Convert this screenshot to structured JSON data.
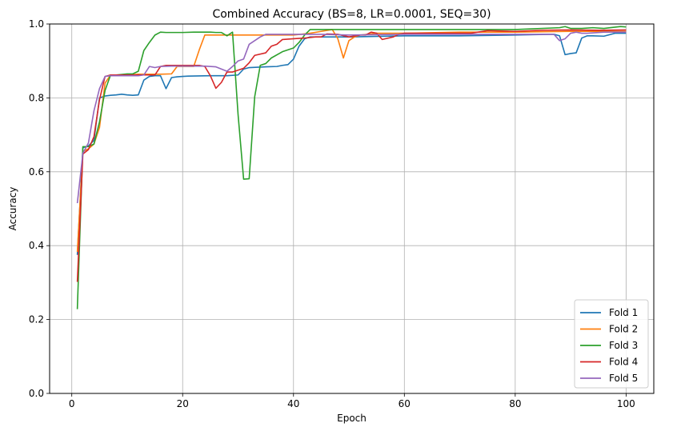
{
  "chart_data": {
    "type": "line",
    "title": "Combined Accuracy (BS=8, LR=0.0001, SEQ=30)",
    "xlabel": "Epoch",
    "ylabel": "Accuracy",
    "xlim": [
      -4,
      105
    ],
    "ylim": [
      0.0,
      1.0
    ],
    "xticks": [
      0,
      20,
      40,
      60,
      80,
      100
    ],
    "yticks": [
      0.0,
      0.2,
      0.4,
      0.6,
      0.8,
      1.0
    ],
    "xtick_labels": [
      "0",
      "20",
      "40",
      "60",
      "80",
      "100"
    ],
    "ytick_labels": [
      "0.0",
      "0.2",
      "0.4",
      "0.6",
      "0.8",
      "1.0"
    ],
    "grid": true,
    "legend_position": "lower-right",
    "series": [
      {
        "name": "Fold 1",
        "color": "#1f77b4",
        "points": [
          [
            1,
            0.375
          ],
          [
            2,
            0.665
          ],
          [
            3,
            0.67
          ],
          [
            4,
            0.685
          ],
          [
            5,
            0.8
          ],
          [
            6,
            0.805
          ],
          [
            7,
            0.807
          ],
          [
            8,
            0.808
          ],
          [
            9,
            0.81
          ],
          [
            10,
            0.808
          ],
          [
            11,
            0.807
          ],
          [
            12,
            0.808
          ],
          [
            13,
            0.848
          ],
          [
            14,
            0.858
          ],
          [
            15,
            0.86
          ],
          [
            16,
            0.86
          ],
          [
            17,
            0.825
          ],
          [
            18,
            0.855
          ],
          [
            19,
            0.857
          ],
          [
            20,
            0.858
          ],
          [
            21,
            0.859
          ],
          [
            25,
            0.86
          ],
          [
            28,
            0.86
          ],
          [
            30,
            0.862
          ],
          [
            31,
            0.878
          ],
          [
            32,
            0.882
          ],
          [
            35,
            0.884
          ],
          [
            37,
            0.885
          ],
          [
            38,
            0.888
          ],
          [
            39,
            0.89
          ],
          [
            40,
            0.905
          ],
          [
            41,
            0.94
          ],
          [
            42,
            0.96
          ],
          [
            43,
            0.965
          ],
          [
            50,
            0.965
          ],
          [
            60,
            0.968
          ],
          [
            70,
            0.968
          ],
          [
            80,
            0.97
          ],
          [
            86,
            0.972
          ],
          [
            87,
            0.972
          ],
          [
            88,
            0.968
          ],
          [
            89,
            0.917
          ],
          [
            90,
            0.92
          ],
          [
            91,
            0.922
          ],
          [
            92,
            0.962
          ],
          [
            93,
            0.968
          ],
          [
            94,
            0.968
          ],
          [
            96,
            0.967
          ],
          [
            98,
            0.975
          ],
          [
            100,
            0.975
          ]
        ]
      },
      {
        "name": "Fold 2",
        "color": "#ff7f0e",
        "points": [
          [
            1,
            0.383
          ],
          [
            2,
            0.655
          ],
          [
            3,
            0.662
          ],
          [
            4,
            0.675
          ],
          [
            5,
            0.72
          ],
          [
            6,
            0.84
          ],
          [
            7,
            0.862
          ],
          [
            8,
            0.862
          ],
          [
            10,
            0.862
          ],
          [
            12,
            0.864
          ],
          [
            14,
            0.864
          ],
          [
            16,
            0.864
          ],
          [
            18,
            0.865
          ],
          [
            19,
            0.885
          ],
          [
            20,
            0.885
          ],
          [
            22,
            0.885
          ],
          [
            23,
            0.93
          ],
          [
            24,
            0.97
          ],
          [
            26,
            0.97
          ],
          [
            30,
            0.97
          ],
          [
            35,
            0.97
          ],
          [
            40,
            0.97
          ],
          [
            43,
            0.975
          ],
          [
            45,
            0.98
          ],
          [
            47,
            0.985
          ],
          [
            48,
            0.96
          ],
          [
            49,
            0.908
          ],
          [
            50,
            0.955
          ],
          [
            51,
            0.965
          ],
          [
            52,
            0.97
          ],
          [
            55,
            0.975
          ],
          [
            60,
            0.975
          ],
          [
            70,
            0.978
          ],
          [
            80,
            0.978
          ],
          [
            90,
            0.98
          ],
          [
            100,
            0.98
          ]
        ]
      },
      {
        "name": "Fold 3",
        "color": "#2ca02c",
        "points": [
          [
            1,
            0.228
          ],
          [
            2,
            0.668
          ],
          [
            3,
            0.668
          ],
          [
            4,
            0.675
          ],
          [
            5,
            0.735
          ],
          [
            6,
            0.82
          ],
          [
            7,
            0.862
          ],
          [
            8,
            0.862
          ],
          [
            10,
            0.865
          ],
          [
            11,
            0.865
          ],
          [
            12,
            0.872
          ],
          [
            13,
            0.928
          ],
          [
            14,
            0.95
          ],
          [
            15,
            0.97
          ],
          [
            16,
            0.978
          ],
          [
            17,
            0.977
          ],
          [
            20,
            0.977
          ],
          [
            22,
            0.978
          ],
          [
            25,
            0.978
          ],
          [
            26,
            0.977
          ],
          [
            27,
            0.977
          ],
          [
            28,
            0.968
          ],
          [
            29,
            0.978
          ],
          [
            30,
            0.755
          ],
          [
            31,
            0.58
          ],
          [
            32,
            0.581
          ],
          [
            33,
            0.803
          ],
          [
            34,
            0.888
          ],
          [
            35,
            0.893
          ],
          [
            36,
            0.908
          ],
          [
            38,
            0.925
          ],
          [
            40,
            0.935
          ],
          [
            41,
            0.95
          ],
          [
            42,
            0.97
          ],
          [
            43,
            0.985
          ],
          [
            45,
            0.985
          ],
          [
            50,
            0.985
          ],
          [
            60,
            0.985
          ],
          [
            70,
            0.985
          ],
          [
            80,
            0.985
          ],
          [
            88,
            0.99
          ],
          [
            89,
            0.993
          ],
          [
            90,
            0.988
          ],
          [
            92,
            0.988
          ],
          [
            94,
            0.99
          ],
          [
            96,
            0.988
          ],
          [
            99,
            0.993
          ],
          [
            100,
            0.992
          ]
        ]
      },
      {
        "name": "Fold 4",
        "color": "#d62728",
        "points": [
          [
            1,
            0.302
          ],
          [
            2,
            0.648
          ],
          [
            3,
            0.66
          ],
          [
            4,
            0.695
          ],
          [
            5,
            0.795
          ],
          [
            6,
            0.858
          ],
          [
            7,
            0.862
          ],
          [
            9,
            0.862
          ],
          [
            10,
            0.862
          ],
          [
            12,
            0.862
          ],
          [
            14,
            0.862
          ],
          [
            15,
            0.862
          ],
          [
            16,
            0.885
          ],
          [
            17,
            0.888
          ],
          [
            20,
            0.888
          ],
          [
            22,
            0.888
          ],
          [
            23,
            0.888
          ],
          [
            24,
            0.885
          ],
          [
            25,
            0.86
          ],
          [
            26,
            0.826
          ],
          [
            27,
            0.842
          ],
          [
            28,
            0.87
          ],
          [
            29,
            0.87
          ],
          [
            30,
            0.875
          ],
          [
            31,
            0.88
          ],
          [
            32,
            0.895
          ],
          [
            33,
            0.915
          ],
          [
            35,
            0.922
          ],
          [
            36,
            0.94
          ],
          [
            37,
            0.945
          ],
          [
            38,
            0.958
          ],
          [
            40,
            0.96
          ],
          [
            42,
            0.962
          ],
          [
            44,
            0.965
          ],
          [
            45,
            0.965
          ],
          [
            46,
            0.973
          ],
          [
            48,
            0.972
          ],
          [
            50,
            0.965
          ],
          [
            52,
            0.97
          ],
          [
            53,
            0.97
          ],
          [
            54,
            0.978
          ],
          [
            55,
            0.975
          ],
          [
            56,
            0.958
          ],
          [
            58,
            0.965
          ],
          [
            59,
            0.972
          ],
          [
            60,
            0.975
          ],
          [
            65,
            0.975
          ],
          [
            70,
            0.975
          ],
          [
            72,
            0.975
          ],
          [
            75,
            0.982
          ],
          [
            80,
            0.98
          ],
          [
            85,
            0.983
          ],
          [
            90,
            0.984
          ],
          [
            95,
            0.983
          ],
          [
            100,
            0.984
          ]
        ]
      },
      {
        "name": "Fold 5",
        "color": "#9467bd",
        "points": [
          [
            1,
            0.515
          ],
          [
            2,
            0.65
          ],
          [
            3,
            0.678
          ],
          [
            4,
            0.765
          ],
          [
            5,
            0.825
          ],
          [
            6,
            0.858
          ],
          [
            7,
            0.86
          ],
          [
            8,
            0.86
          ],
          [
            10,
            0.86
          ],
          [
            12,
            0.86
          ],
          [
            13,
            0.862
          ],
          [
            14,
            0.885
          ],
          [
            15,
            0.882
          ],
          [
            16,
            0.885
          ],
          [
            18,
            0.886
          ],
          [
            20,
            0.886
          ],
          [
            24,
            0.886
          ],
          [
            26,
            0.884
          ],
          [
            28,
            0.872
          ],
          [
            29,
            0.885
          ],
          [
            30,
            0.9
          ],
          [
            31,
            0.905
          ],
          [
            32,
            0.945
          ],
          [
            33,
            0.955
          ],
          [
            34,
            0.965
          ],
          [
            35,
            0.972
          ],
          [
            38,
            0.972
          ],
          [
            40,
            0.972
          ],
          [
            45,
            0.972
          ],
          [
            50,
            0.97
          ],
          [
            60,
            0.972
          ],
          [
            70,
            0.972
          ],
          [
            80,
            0.972
          ],
          [
            86,
            0.972
          ],
          [
            87,
            0.972
          ],
          [
            88,
            0.955
          ],
          [
            89,
            0.96
          ],
          [
            90,
            0.975
          ],
          [
            91,
            0.978
          ],
          [
            92,
            0.975
          ],
          [
            93,
            0.975
          ],
          [
            96,
            0.978
          ],
          [
            100,
            0.978
          ]
        ]
      }
    ]
  }
}
